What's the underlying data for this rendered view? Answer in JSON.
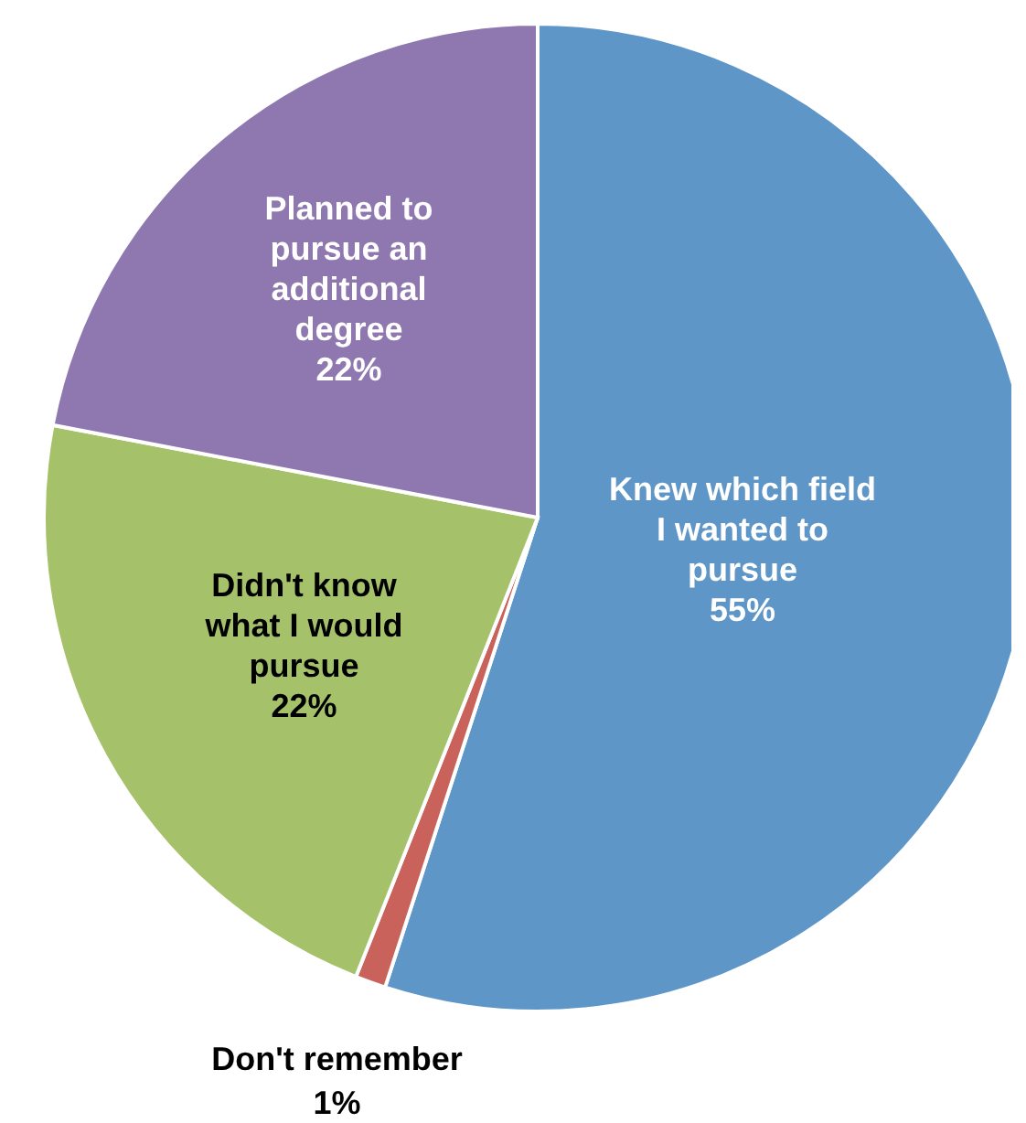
{
  "chart_data": {
    "type": "pie",
    "categories": [
      "Knew which field I wanted to pursue",
      "Don't remember",
      "Didn't know what I would pursue",
      "Planned to pursue an additional degree"
    ],
    "values": [
      55,
      1,
      22,
      22
    ],
    "value_labels": [
      "55%",
      "1%",
      "22%",
      "22%"
    ],
    "colors": [
      "#5f96c8",
      "#c9625a",
      "#a5c26b",
      "#8f78b0"
    ]
  }
}
